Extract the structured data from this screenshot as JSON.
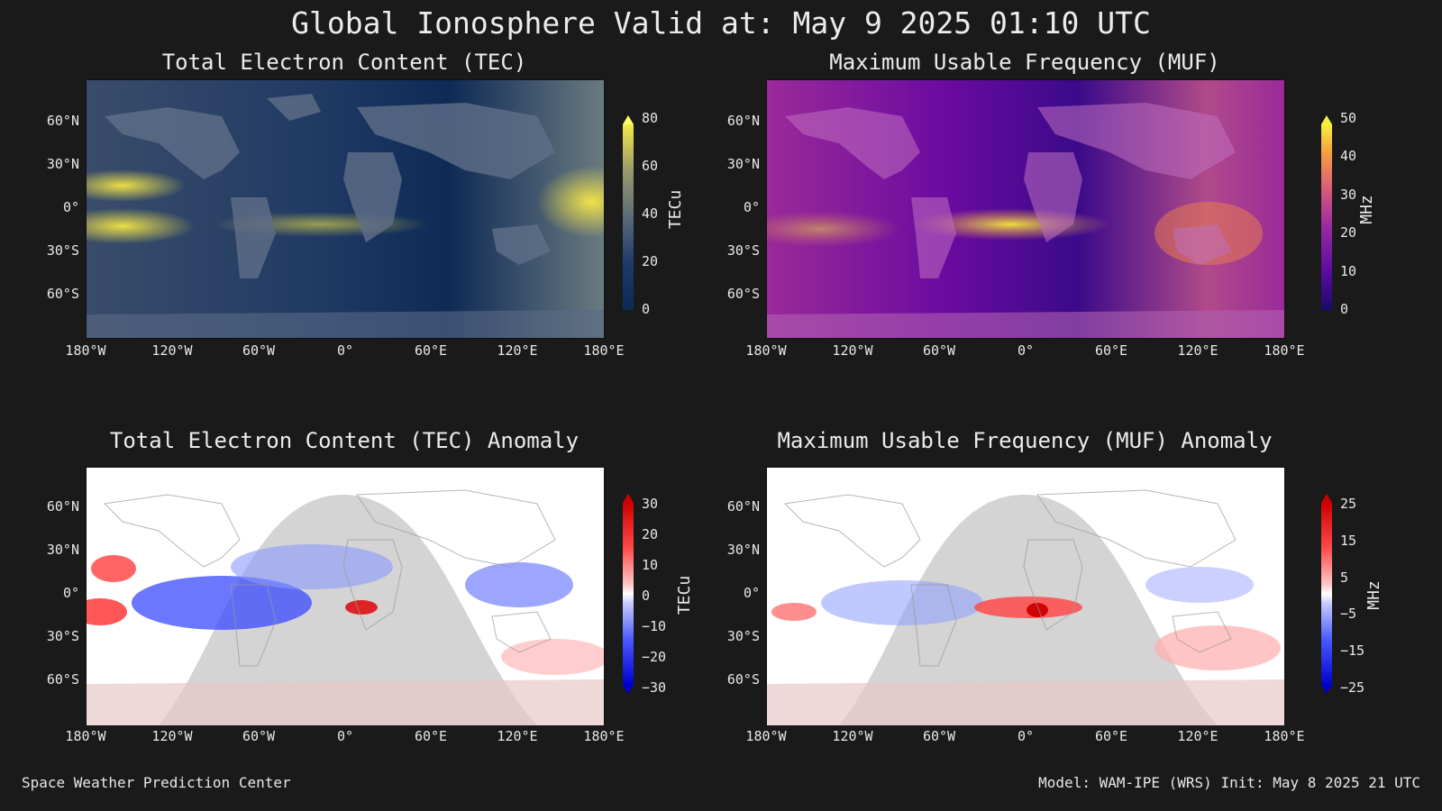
{
  "main_title": "Global Ionosphere Valid at: May 9 2025 01:10 UTC",
  "lat_labels": [
    "60°N",
    "30°N",
    "0°",
    "30°S",
    "60°S"
  ],
  "lon_labels": [
    "180°W",
    "120°W",
    "60°W",
    "0°",
    "60°E",
    "120°E",
    "180°E"
  ],
  "panels": {
    "tec": {
      "title": "Total Electron Content (TEC)",
      "unit": "TECu",
      "ticks": [
        "80",
        "60",
        "40",
        "20",
        "0"
      ],
      "colors": [
        "#0b2a55",
        "#1f3a6a",
        "#5a6a7a",
        "#9a9a6a",
        "#f5e84a",
        "#ffff66"
      ]
    },
    "muf": {
      "title": "Maximum Usable Frequency (MUF)",
      "unit": "MHz",
      "ticks": [
        "50",
        "40",
        "30",
        "20",
        "10",
        "0"
      ],
      "colors": [
        "#1a0a6a",
        "#5a0aa0",
        "#9a2aa0",
        "#d85a7a",
        "#f5a040",
        "#f5f040"
      ]
    },
    "tec_anom": {
      "title": "Total Electron Content (TEC) Anomaly",
      "unit": "TECu",
      "ticks": [
        "30",
        "20",
        "10",
        "0",
        "−10",
        "−20",
        "−30"
      ],
      "colors": [
        "#0000cc",
        "#4a5aff",
        "#c8ccff",
        "#ffffff",
        "#ffc8c8",
        "#ff4a4a",
        "#cc0000"
      ]
    },
    "muf_anom": {
      "title": "Maximum Usable Frequency (MUF) Anomaly",
      "unit": "MHz",
      "ticks": [
        "25",
        "15",
        "5",
        "−5",
        "−15",
        "−25"
      ],
      "colors": [
        "#0000cc",
        "#4a5aff",
        "#c8ccff",
        "#ffffff",
        "#ffc8c8",
        "#ff4a4a",
        "#cc0000"
      ]
    }
  },
  "footer": {
    "left": "Space Weather Prediction Center",
    "right": "Model: WAM-IPE (WRS) Init: May 8 2025 21 UTC"
  }
}
